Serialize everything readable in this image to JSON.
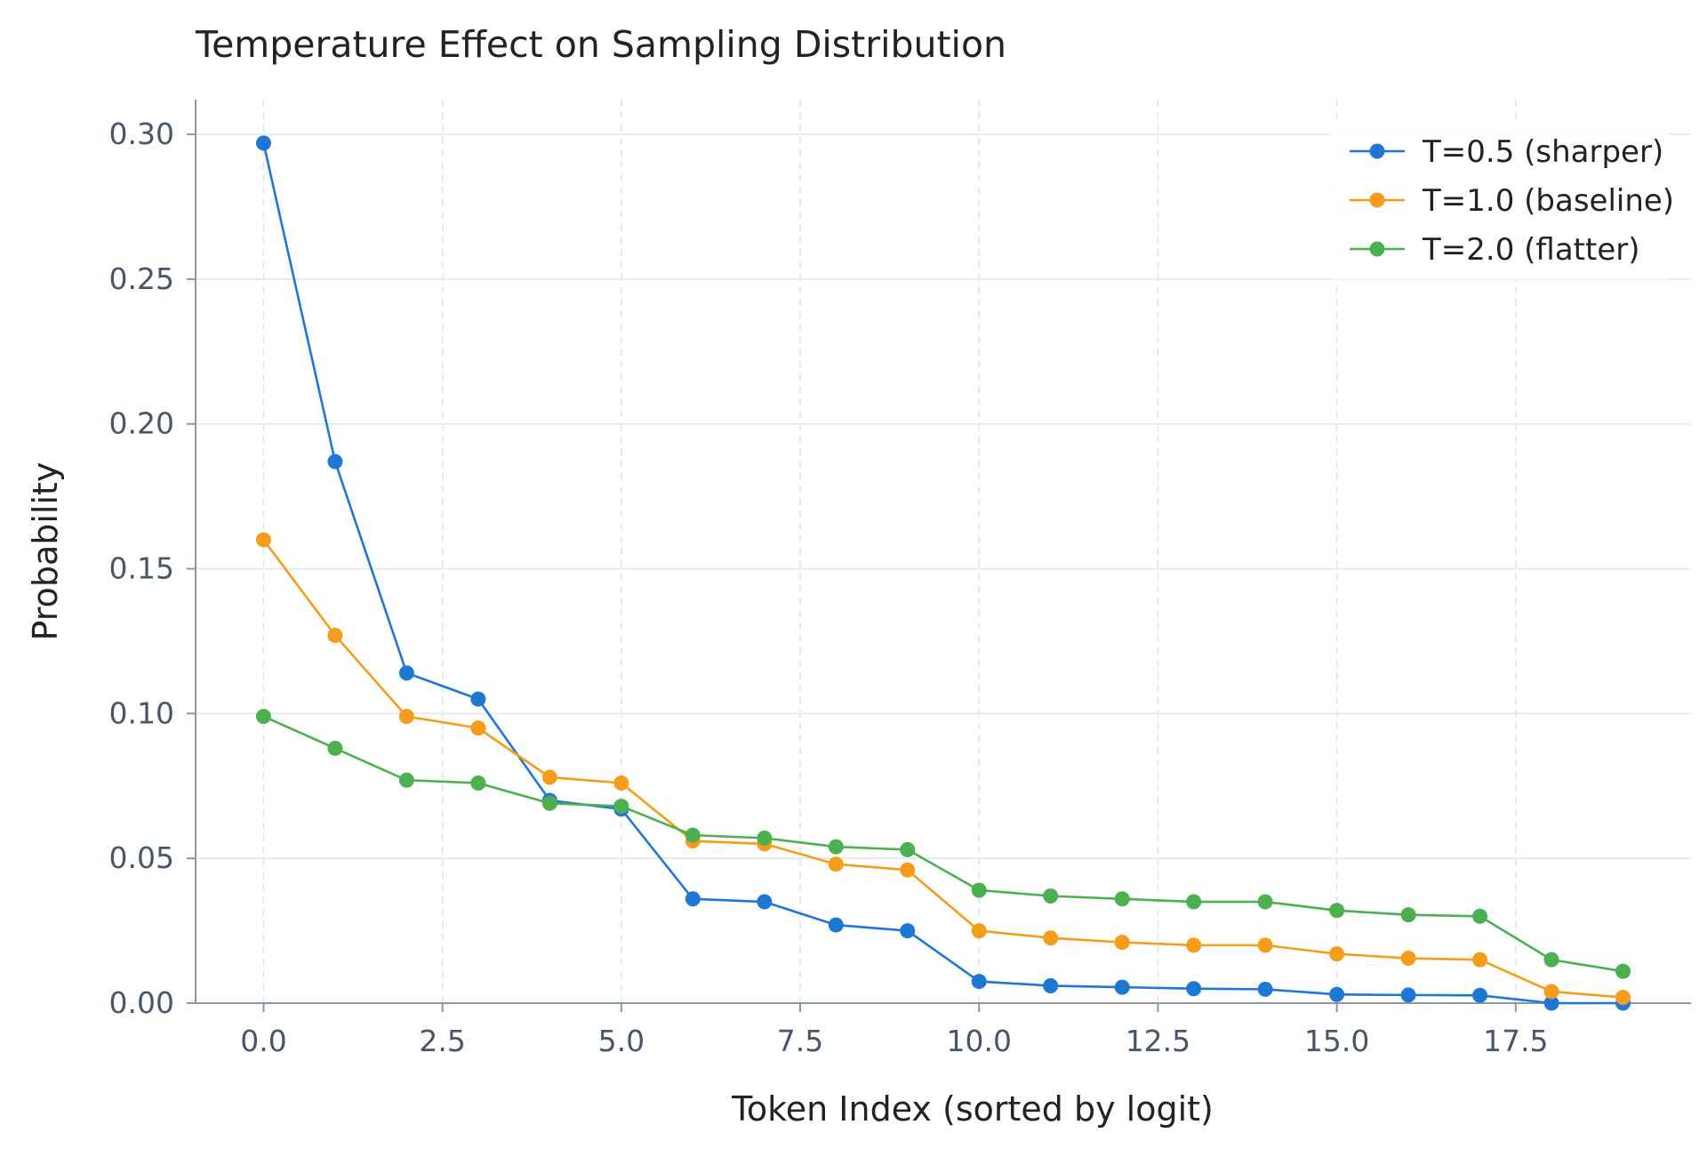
{
  "chart_data": {
    "type": "line",
    "title": "Temperature Effect on Sampling Distribution",
    "xlabel": "Token Index (sorted by logit)",
    "ylabel": "Probability",
    "xlim": [
      -0.95,
      19.95
    ],
    "ylim": [
      0,
      0.312
    ],
    "x_ticks": [
      0,
      2.5,
      5,
      7.5,
      10,
      12.5,
      15,
      17.5
    ],
    "x_tick_labels": [
      "0.0",
      "2.5",
      "5.0",
      "7.5",
      "10.0",
      "12.5",
      "15.0",
      "17.5"
    ],
    "y_ticks": [
      0,
      0.05,
      0.1,
      0.15,
      0.2,
      0.25,
      0.3
    ],
    "y_tick_labels": [
      "0.00",
      "0.05",
      "0.10",
      "0.15",
      "0.20",
      "0.25",
      "0.30"
    ],
    "grid": true,
    "legend_position": "top-right",
    "x": [
      0,
      1,
      2,
      3,
      4,
      5,
      6,
      7,
      8,
      9,
      10,
      11,
      12,
      13,
      14,
      15,
      16,
      17,
      18,
      19
    ],
    "series": [
      {
        "name": "T=0.5 (sharper)",
        "color": "#1f77d4",
        "values": [
          0.297,
          0.187,
          0.114,
          0.105,
          0.07,
          0.067,
          0.036,
          0.035,
          0.027,
          0.025,
          0.0075,
          0.006,
          0.0055,
          0.005,
          0.0048,
          0.003,
          0.0028,
          0.0027,
          0.0,
          0.0
        ]
      },
      {
        "name": "T=1.0 (baseline)",
        "color": "#f59c1a",
        "values": [
          0.16,
          0.127,
          0.099,
          0.095,
          0.078,
          0.076,
          0.056,
          0.055,
          0.048,
          0.046,
          0.025,
          0.0225,
          0.021,
          0.02,
          0.02,
          0.017,
          0.0155,
          0.015,
          0.004,
          0.002
        ]
      },
      {
        "name": "T=2.0 (flatter)",
        "color": "#4caf50",
        "values": [
          0.099,
          0.088,
          0.077,
          0.076,
          0.069,
          0.068,
          0.058,
          0.057,
          0.054,
          0.053,
          0.039,
          0.037,
          0.036,
          0.035,
          0.035,
          0.032,
          0.0305,
          0.03,
          0.015,
          0.011
        ]
      }
    ]
  }
}
